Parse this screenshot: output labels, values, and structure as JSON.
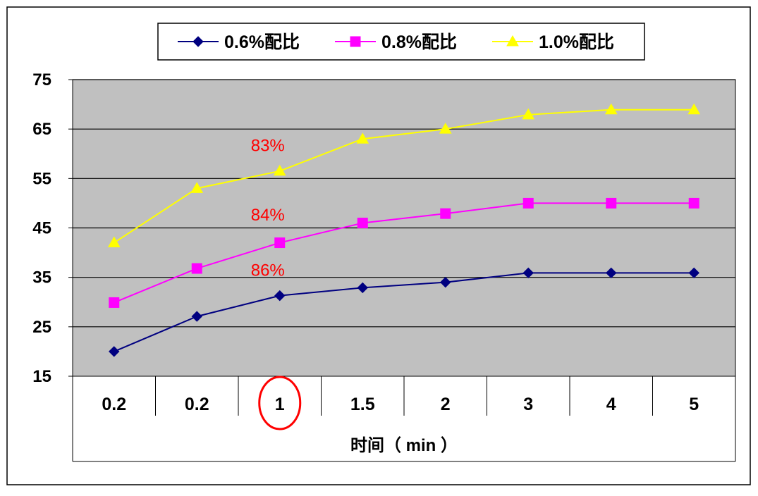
{
  "chart_data": {
    "type": "line",
    "categories": [
      "0.2",
      "0.2",
      "1",
      "1.5",
      "2",
      "3",
      "4",
      "5"
    ],
    "series": [
      {
        "name": "0.6%配比",
        "color": "#000080",
        "marker": "diamond",
        "values": [
          20,
          27.1,
          31.3,
          32.9,
          34,
          35.9,
          35.9,
          35.9
        ]
      },
      {
        "name": "0.8%配比",
        "color": "#FF00FF",
        "marker": "square",
        "values": [
          29.9,
          36.8,
          42,
          46,
          47.9,
          50,
          50,
          50
        ]
      },
      {
        "name": "1.0%配比",
        "color": "#FFFF00",
        "marker": "triangle",
        "values": [
          42,
          53,
          56.5,
          63,
          65,
          67.9,
          68.9,
          68.9
        ]
      }
    ],
    "ylim": [
      15,
      75
    ],
    "yticks": [
      15,
      25,
      35,
      45,
      55,
      65,
      75
    ],
    "xlabel": "时间（ min ）",
    "ylabel": "",
    "title": "",
    "grid": true,
    "plot_background": "#C0C0C0",
    "legend_position": "top",
    "annotations": [
      {
        "text": "83%",
        "category_index": 2,
        "y": 60.5,
        "color": "#FF0000"
      },
      {
        "text": "84%",
        "category_index": 2,
        "y": 46.5,
        "color": "#FF0000"
      },
      {
        "text": "86%",
        "category_index": 2,
        "y": 35.3,
        "color": "#FF0000"
      }
    ],
    "highlight": {
      "category_index": 2,
      "shape": "circle",
      "color": "#FF0000"
    }
  }
}
